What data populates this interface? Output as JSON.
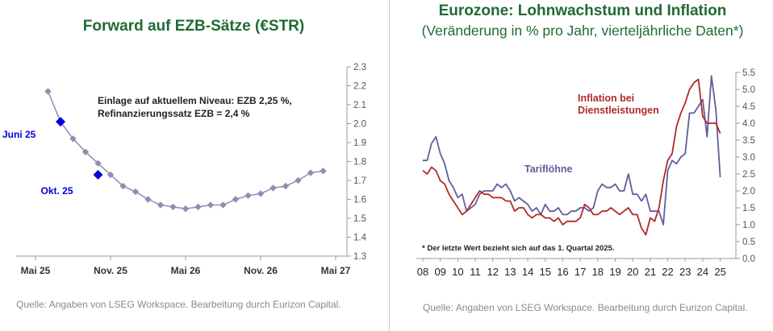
{
  "left": {
    "title": "Forward auf EZB-Sätze (€STR)",
    "source": "Quelle: Angaben von LSEG Workspace. Bearbeitung durch Eurizon Capital."
  },
  "right": {
    "title": "Eurozone: Lohnwachstum und Inflation",
    "subtitle": "(Veränderung in % pro Jahr, vierteljährliche Daten*)",
    "source": "Quelle: Angaben von LSEG Workspace. Bearbeitung durch Eurizon Capital."
  },
  "chart_data": [
    {
      "type": "line",
      "title": "Forward auf EZB-Sätze (€STR)",
      "x_tick_labels": [
        "Mai 25",
        "Nov. 25",
        "Mai 26",
        "Nov. 26",
        "Mai 27"
      ],
      "x_tick_positions": [
        0,
        6,
        12,
        18,
        24
      ],
      "y_axis_side": "right",
      "ylim": [
        1.3,
        2.3
      ],
      "y_ticks": [
        "1.3",
        "1.4",
        "1.5",
        "1.6",
        "1.7",
        "1.8",
        "1.9",
        "2.0",
        "2.1",
        "2.2",
        "2.3"
      ],
      "grid": false,
      "series": [
        {
          "color": "#8e8eb4",
          "marker_color": "#8e8eb4",
          "x": [
            1,
            2,
            3,
            4,
            5,
            6,
            7,
            8,
            9,
            10,
            11,
            12,
            13,
            14,
            15,
            16,
            17,
            18,
            19,
            20,
            21,
            22,
            23
          ],
          "y": [
            2.17,
            2.01,
            1.92,
            1.85,
            1.79,
            1.73,
            1.67,
            1.64,
            1.6,
            1.57,
            1.56,
            1.55,
            1.56,
            1.57,
            1.57,
            1.6,
            1.62,
            1.63,
            1.66,
            1.67,
            1.7,
            1.74,
            1.75
          ]
        }
      ],
      "highlighted_points": [
        {
          "label": "Juni 25",
          "x": 2,
          "y": 2.01,
          "color": "#0000dd"
        },
        {
          "label": "Okt. 25",
          "x": 5,
          "y": 1.73,
          "color": "#0000dd"
        }
      ],
      "annotation": "Einlage auf aktuellem Niveau: EZB 2,25 %,\nRefinanzierungssatz EZB = 2,4 %"
    },
    {
      "type": "line",
      "title": "Eurozone: Lohnwachstum und Inflation",
      "subtitle": "(Veränderung in % pro Jahr, vierteljährliche Daten*)",
      "x_tick_labels": [
        "08",
        "09",
        "10",
        "11",
        "12",
        "13",
        "14",
        "15",
        "16",
        "17",
        "18",
        "19",
        "20",
        "21",
        "22",
        "23",
        "24",
        "25"
      ],
      "xlim": [
        2008,
        2025.25
      ],
      "y_axis_side": "right",
      "ylim": [
        0.0,
        5.5
      ],
      "y_ticks": [
        "0.0",
        "0.5",
        "1.0",
        "1.5",
        "2.0",
        "2.5",
        "3.0",
        "3.5",
        "4.0",
        "4.5",
        "5.0",
        "5.5"
      ],
      "grid": false,
      "series": [
        {
          "name": "Tariflöhne",
          "color": "#5f5f9b",
          "x": [
            2008.0,
            2008.25,
            2008.5,
            2008.75,
            2009.0,
            2009.25,
            2009.5,
            2009.75,
            2010.0,
            2010.25,
            2010.5,
            2010.75,
            2011.0,
            2011.25,
            2011.5,
            2011.75,
            2012.0,
            2012.25,
            2012.5,
            2012.75,
            2013.0,
            2013.25,
            2013.5,
            2013.75,
            2014.0,
            2014.25,
            2014.5,
            2014.75,
            2015.0,
            2015.25,
            2015.5,
            2015.75,
            2016.0,
            2016.25,
            2016.5,
            2016.75,
            2017.0,
            2017.25,
            2017.5,
            2017.75,
            2018.0,
            2018.25,
            2018.5,
            2018.75,
            2019.0,
            2019.25,
            2019.5,
            2019.75,
            2020.0,
            2020.25,
            2020.5,
            2020.75,
            2021.0,
            2021.25,
            2021.5,
            2021.75,
            2022.0,
            2022.25,
            2022.5,
            2022.75,
            2023.0,
            2023.25,
            2023.5,
            2023.75,
            2024.0,
            2024.25,
            2024.5,
            2024.75,
            2025.0
          ],
          "y": [
            2.9,
            2.9,
            3.4,
            3.6,
            3.1,
            2.8,
            2.3,
            2.1,
            1.8,
            1.9,
            1.4,
            1.5,
            1.6,
            1.9,
            2.0,
            2.0,
            2.0,
            2.2,
            2.1,
            2.2,
            2.0,
            1.7,
            1.8,
            1.7,
            1.6,
            1.4,
            1.5,
            1.3,
            1.6,
            1.4,
            1.4,
            1.5,
            1.3,
            1.3,
            1.4,
            1.4,
            1.5,
            1.5,
            1.4,
            1.5,
            2.0,
            2.2,
            2.1,
            2.1,
            2.2,
            2.0,
            2.0,
            2.5,
            1.9,
            1.9,
            1.7,
            1.9,
            1.4,
            1.4,
            1.4,
            1.0,
            2.6,
            2.9,
            2.8,
            3.0,
            3.1,
            4.3,
            4.3,
            4.5,
            4.7,
            3.6,
            5.4,
            4.4,
            2.4
          ]
        },
        {
          "name": "Inflation bei Dienstleistungen",
          "color": "#b02a2a",
          "x": [
            2008.0,
            2008.25,
            2008.5,
            2008.75,
            2009.0,
            2009.25,
            2009.5,
            2009.75,
            2010.0,
            2010.25,
            2010.5,
            2010.75,
            2011.0,
            2011.25,
            2011.5,
            2011.75,
            2012.0,
            2012.25,
            2012.5,
            2012.75,
            2013.0,
            2013.25,
            2013.5,
            2013.75,
            2014.0,
            2014.25,
            2014.5,
            2014.75,
            2015.0,
            2015.25,
            2015.5,
            2015.75,
            2016.0,
            2016.25,
            2016.5,
            2016.75,
            2017.0,
            2017.25,
            2017.5,
            2017.75,
            2018.0,
            2018.25,
            2018.5,
            2018.75,
            2019.0,
            2019.25,
            2019.5,
            2019.75,
            2020.0,
            2020.25,
            2020.5,
            2020.75,
            2021.0,
            2021.25,
            2021.5,
            2021.75,
            2022.0,
            2022.25,
            2022.5,
            2022.75,
            2023.0,
            2023.25,
            2023.5,
            2023.75,
            2024.0,
            2024.25,
            2024.5,
            2024.75,
            2025.0
          ],
          "y": [
            2.6,
            2.5,
            2.7,
            2.6,
            2.3,
            2.2,
            1.9,
            1.7,
            1.5,
            1.3,
            1.4,
            1.6,
            1.8,
            2.0,
            1.9,
            1.9,
            1.8,
            1.8,
            1.8,
            1.7,
            1.7,
            1.4,
            1.5,
            1.5,
            1.3,
            1.2,
            1.3,
            1.3,
            1.2,
            1.2,
            1.1,
            1.2,
            1.0,
            1.1,
            1.1,
            1.1,
            1.2,
            1.6,
            1.5,
            1.3,
            1.3,
            1.4,
            1.4,
            1.5,
            1.4,
            1.3,
            1.4,
            1.5,
            1.3,
            1.3,
            0.9,
            0.7,
            1.2,
            1.1,
            1.5,
            2.3,
            2.9,
            3.1,
            3.9,
            4.3,
            4.6,
            5.0,
            5.2,
            5.3,
            4.2,
            4.0,
            4.0,
            4.0,
            3.7
          ]
        }
      ],
      "series_labels": [
        "Tariflöhne",
        "Inflation bei\nDienstleistungen"
      ],
      "footnote": "* Der letzte Wert bezieht sich auf das 1. Quartal 2025."
    }
  ]
}
